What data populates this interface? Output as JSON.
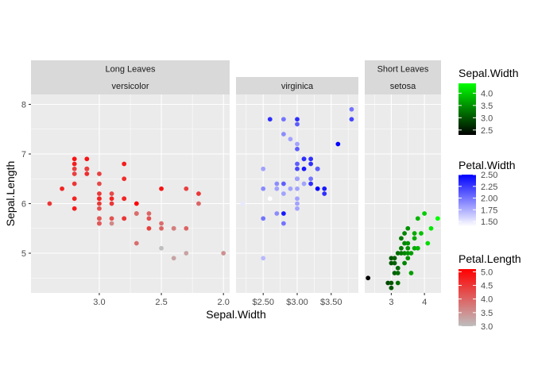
{
  "chart_data": {
    "type": "scatter",
    "xlabel": "Sepal.Width",
    "ylabel": "Sepal.Length",
    "y_ticks": [
      5,
      6,
      7,
      8
    ],
    "y_range": [
      4.2,
      8.2
    ],
    "group_strips": [
      {
        "label": "Long Leaves"
      },
      {
        "label": "Short Leaves"
      }
    ],
    "panels": [
      {
        "name": "versicolor",
        "x_range": [
          3.55,
          1.95
        ],
        "x_reversed": true,
        "x_ticks": [
          3.0,
          2.5,
          2.0
        ],
        "x_tick_labels": [
          "3.0",
          "2.5",
          "2.0"
        ],
        "x_minor": [
          2.75,
          2.25
        ],
        "color_var": "Petal.Length",
        "points": [
          [
            3.4,
            6.0,
            4.5
          ],
          [
            3.3,
            6.3,
            4.7
          ],
          [
            3.2,
            6.9,
            4.9
          ],
          [
            3.2,
            6.4,
            4.5
          ],
          [
            3.2,
            6.8,
            4.8
          ],
          [
            3.2,
            6.1,
            4.7
          ],
          [
            3.2,
            6.7,
            4.4
          ],
          [
            3.2,
            6.6,
            4.4
          ],
          [
            3.2,
            5.9,
            4.8
          ],
          [
            3.1,
            6.9,
            4.9
          ],
          [
            3.1,
            6.7,
            4.7
          ],
          [
            3.1,
            6.7,
            4.4
          ],
          [
            3.1,
            6.7,
            5.0
          ],
          [
            3.1,
            6.6,
            4.6
          ],
          [
            3.1,
            6.7,
            4.4
          ],
          [
            3.0,
            6.6,
            4.4
          ],
          [
            3.0,
            6.4,
            4.3
          ],
          [
            3.0,
            6.2,
            4.5
          ],
          [
            3.0,
            6.1,
            4.3
          ],
          [
            3.0,
            6.1,
            4.7
          ],
          [
            3.0,
            6.0,
            4.5
          ],
          [
            3.0,
            5.9,
            4.2
          ],
          [
            3.0,
            5.7,
            4.2
          ],
          [
            3.0,
            5.7,
            4.1
          ],
          [
            3.0,
            5.6,
            4.5
          ],
          [
            3.0,
            5.6,
            4.1
          ],
          [
            2.9,
            6.2,
            4.3
          ],
          [
            2.9,
            6.1,
            4.7
          ],
          [
            2.9,
            6.0,
            4.5
          ],
          [
            2.9,
            5.7,
            4.2
          ],
          [
            2.9,
            5.6,
            3.6
          ],
          [
            2.8,
            6.8,
            4.8
          ],
          [
            2.8,
            6.5,
            4.6
          ],
          [
            2.8,
            6.1,
            4.0
          ],
          [
            2.8,
            6.1,
            4.7
          ],
          [
            2.8,
            5.7,
            4.1
          ],
          [
            2.8,
            5.7,
            4.5
          ],
          [
            2.7,
            6.0,
            5.1
          ],
          [
            2.7,
            5.8,
            4.1
          ],
          [
            2.7,
            5.8,
            3.9
          ],
          [
            2.7,
            5.2,
            3.9
          ],
          [
            2.6,
            5.8,
            4.0
          ],
          [
            2.6,
            5.7,
            4.2
          ],
          [
            2.6,
            5.5,
            4.4
          ],
          [
            2.5,
            6.3,
            4.9
          ],
          [
            2.5,
            5.6,
            3.9
          ],
          [
            2.5,
            5.5,
            4.0
          ],
          [
            2.5,
            5.1,
            3.0
          ],
          [
            2.4,
            5.5,
            3.8
          ],
          [
            2.4,
            5.5,
            3.7
          ],
          [
            2.4,
            4.9,
            3.3
          ],
          [
            2.3,
            6.3,
            4.4
          ],
          [
            2.3,
            5.5,
            4.0
          ],
          [
            2.3,
            5.0,
            3.3
          ],
          [
            2.2,
            6.2,
            4.5
          ],
          [
            2.2,
            6.0,
            4.0
          ],
          [
            2.0,
            5.0,
            3.5
          ]
        ]
      },
      {
        "name": "virginica",
        "x_range": [
          2.1,
          3.9
        ],
        "x_ticks": [
          2.5,
          3.0,
          3.5
        ],
        "x_tick_labels": [
          "$2.50",
          "$3.00",
          "$3.50"
        ],
        "x_minor": [
          2.25,
          2.75,
          3.25,
          3.75
        ],
        "color_var": "Petal.Width",
        "points": [
          [
            3.8,
            7.9,
            2.0
          ],
          [
            3.8,
            7.7,
            2.2
          ],
          [
            3.6,
            7.2,
            2.5
          ],
          [
            3.4,
            6.3,
            2.4
          ],
          [
            3.4,
            6.2,
            2.3
          ],
          [
            3.3,
            6.7,
            2.5
          ],
          [
            3.3,
            6.3,
            2.5
          ],
          [
            3.3,
            6.7,
            2.1
          ],
          [
            3.2,
            6.9,
            2.3
          ],
          [
            3.2,
            6.5,
            2.0
          ],
          [
            3.2,
            6.4,
            2.3
          ],
          [
            3.2,
            6.8,
            2.3
          ],
          [
            3.1,
            6.9,
            2.1
          ],
          [
            3.1,
            6.7,
            2.4
          ],
          [
            3.1,
            6.9,
            2.3
          ],
          [
            3.1,
            6.4,
            1.8
          ],
          [
            3.0,
            7.7,
            2.3
          ],
          [
            3.0,
            7.6,
            2.1
          ],
          [
            3.0,
            7.2,
            1.8
          ],
          [
            3.0,
            7.1,
            2.1
          ],
          [
            3.0,
            6.8,
            2.1
          ],
          [
            3.0,
            6.7,
            2.2
          ],
          [
            3.0,
            6.5,
            2.2
          ],
          [
            3.0,
            6.5,
            1.8
          ],
          [
            3.0,
            6.3,
            1.8
          ],
          [
            3.0,
            6.1,
            1.8
          ],
          [
            3.0,
            6.0,
            1.8
          ],
          [
            3.0,
            5.9,
            1.8
          ],
          [
            2.9,
            7.3,
            1.8
          ],
          [
            2.9,
            6.3,
            1.8
          ],
          [
            2.8,
            7.7,
            2.0
          ],
          [
            2.8,
            7.4,
            1.9
          ],
          [
            2.8,
            6.4,
            2.1
          ],
          [
            2.8,
            6.3,
            1.5
          ],
          [
            2.8,
            6.2,
            1.8
          ],
          [
            2.8,
            5.8,
            2.4
          ],
          [
            2.8,
            5.6,
            2.0
          ],
          [
            2.7,
            6.4,
            1.9
          ],
          [
            2.7,
            6.3,
            1.8
          ],
          [
            2.7,
            5.8,
            1.9
          ],
          [
            2.6,
            7.7,
            2.3
          ],
          [
            2.6,
            6.1,
            1.4
          ],
          [
            2.5,
            6.7,
            1.8
          ],
          [
            2.5,
            6.3,
            1.9
          ],
          [
            2.5,
            5.7,
            2.0
          ],
          [
            2.5,
            4.9,
            1.7
          ],
          [
            2.2,
            6.0,
            1.5
          ]
        ]
      },
      {
        "name": "setosa",
        "x_range": [
          2.2,
          4.5
        ],
        "x_ticks": [
          3,
          4
        ],
        "x_tick_labels": [
          "3",
          "4"
        ],
        "x_minor": [
          2.5,
          3.5
        ],
        "color_var": "Sepal.Width",
        "points": [
          [
            2.3,
            4.5,
            2.3
          ],
          [
            2.9,
            4.4,
            2.9
          ],
          [
            3.0,
            4.3,
            3.0
          ],
          [
            3.0,
            4.4,
            3.0
          ],
          [
            3.0,
            4.8,
            3.0
          ],
          [
            3.0,
            4.9,
            3.0
          ],
          [
            3.1,
            4.6,
            3.1
          ],
          [
            3.1,
            4.8,
            3.1
          ],
          [
            3.1,
            4.9,
            3.1
          ],
          [
            3.2,
            4.4,
            3.2
          ],
          [
            3.2,
            4.6,
            3.2
          ],
          [
            3.2,
            4.7,
            3.2
          ],
          [
            3.2,
            5.0,
            3.2
          ],
          [
            3.3,
            5.0,
            3.3
          ],
          [
            3.3,
            5.1,
            3.3
          ],
          [
            3.4,
            4.8,
            3.4
          ],
          [
            3.4,
            5.0,
            3.4
          ],
          [
            3.4,
            5.2,
            3.4
          ],
          [
            3.4,
            5.4,
            3.4
          ],
          [
            3.5,
            5.0,
            3.5
          ],
          [
            3.5,
            5.1,
            3.5
          ],
          [
            3.5,
            5.2,
            3.5
          ],
          [
            3.5,
            5.5,
            3.5
          ],
          [
            3.6,
            4.6,
            3.6
          ],
          [
            3.6,
            5.0,
            3.6
          ],
          [
            3.7,
            5.1,
            3.7
          ],
          [
            3.7,
            5.3,
            3.7
          ],
          [
            3.7,
            5.4,
            3.7
          ],
          [
            3.8,
            5.1,
            3.8
          ],
          [
            3.9,
            5.4,
            3.9
          ],
          [
            4.0,
            5.8,
            4.0
          ],
          [
            4.1,
            5.2,
            4.1
          ],
          [
            4.2,
            5.5,
            4.2
          ],
          [
            4.4,
            5.7,
            4.4
          ],
          [
            3.8,
            5.7,
            3.8
          ],
          [
            3.5,
            4.9,
            3.5
          ],
          [
            3.3,
            5.3,
            3.3
          ]
        ]
      }
    ],
    "legends": [
      {
        "title": "Sepal.Width",
        "range": [
          2.3,
          4.4
        ],
        "breaks": [
          2.5,
          3.0,
          3.5,
          4.0
        ],
        "labels": [
          "2.5",
          "3.0",
          "3.5",
          "4.0"
        ],
        "low_color": "#000000",
        "high_color": "#00ff00"
      },
      {
        "title": "Petal.Width",
        "range": [
          1.4,
          2.5
        ],
        "breaks": [
          1.5,
          1.75,
          2.0,
          2.25,
          2.5
        ],
        "labels": [
          "1.50",
          "1.75",
          "2.00",
          "2.25",
          "2.50"
        ],
        "low_color": "#ffffff",
        "high_color": "#0000ff"
      },
      {
        "title": "Petal.Length",
        "range": [
          3.0,
          5.1
        ],
        "breaks": [
          3.0,
          3.5,
          4.0,
          4.5,
          5.0
        ],
        "labels": [
          "3.0",
          "3.5",
          "4.0",
          "4.5",
          "5.0"
        ],
        "low_color": "#bebebe",
        "high_color": "#ff0000"
      }
    ]
  }
}
